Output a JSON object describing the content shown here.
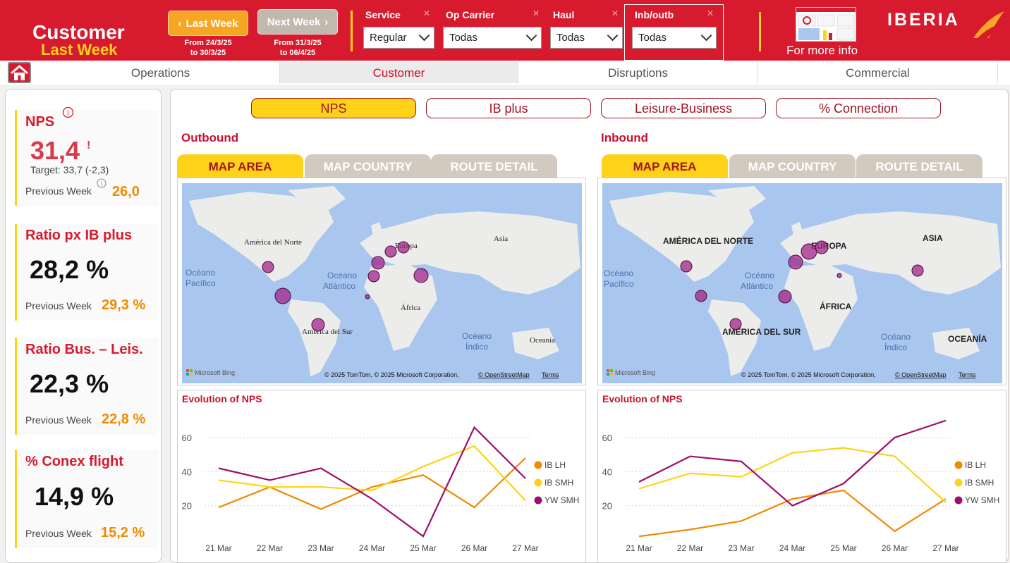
{
  "header": {
    "title_line1": "Customer",
    "title_line2": "Last Week",
    "last_week_btn": "Last Week",
    "last_week_dates": [
      "From 24/3/25",
      "to 30/3/25"
    ],
    "next_week_btn": "Next Week",
    "next_week_dates": [
      "From 31/3/25",
      "to 06/4/25"
    ],
    "filters": [
      {
        "label": "Service",
        "value": "Regular"
      },
      {
        "label": "Op Carrier",
        "value": "Todas"
      },
      {
        "label": "Haul",
        "value": "Todas"
      },
      {
        "label": "Inb/outb",
        "value": "Todas"
      }
    ],
    "more_info": "For more info",
    "brand": "IBERIA",
    "colors": {
      "brand_red": "#d71a2e",
      "accent_yellow": "#ffd21a",
      "orange": "#f08a00"
    }
  },
  "tabs": [
    {
      "label": "Operations",
      "active": false
    },
    {
      "label": "Customer",
      "active": true
    },
    {
      "label": "Disruptions",
      "active": false
    },
    {
      "label": "Commercial",
      "active": false
    }
  ],
  "kpis": {
    "nps": {
      "title": "NPS",
      "value": "31,4",
      "flag": "!",
      "target": "Target: 33,7 (-2,3)",
      "prev_label": "Previous Week",
      "prev_value": "26,0"
    },
    "ibplus": {
      "title": "Ratio px IB plus",
      "value": "28,2 %",
      "prev_label": "Previous Week",
      "prev_value": "29,3 %"
    },
    "busleis": {
      "title": "Ratio Bus. – Leis.",
      "value": "22,3 %",
      "prev_label": "Previous Week",
      "prev_value": "22,8 %"
    },
    "conex": {
      "title": "% Conex flight",
      "value": "14,9 %",
      "prev_label": "Previous Week",
      "prev_value": "15,2 %"
    }
  },
  "metric_buttons": [
    {
      "label": "NPS",
      "active": true
    },
    {
      "label": "IB plus",
      "active": false
    },
    {
      "label": "Leisure-Business",
      "active": false
    },
    {
      "label": "% Connection",
      "active": false
    }
  ],
  "outbound": {
    "title": "Outbound",
    "map_tabs": [
      "MAP AREA",
      "MAP COUNTRY",
      "ROUTE DETAIL"
    ],
    "map_labels": {
      "na": "América del Norte",
      "sa": "América del Sur",
      "eu": "Europa",
      "af": "África",
      "as": "Asia",
      "oc": "Oceanía",
      "pac": [
        "Océano",
        "Pacífico"
      ],
      "atl": [
        "Océano",
        "Atlántico"
      ],
      "ind": [
        "Océano",
        "Índico"
      ]
    },
    "bing": "Microsoft Bing",
    "copyright": "© 2025 TomTom, © 2025 Microsoft Corporation,",
    "osm": "© OpenStreetMap",
    "terms": "Terms"
  },
  "inbound": {
    "title": "Inbound",
    "map_tabs": [
      "MAP AREA",
      "MAP COUNTRY",
      "ROUTE DETAIL"
    ],
    "map_labels": {
      "na": "AMÉRICA DEL NORTE",
      "sa": "AMÉRICA DEL SUR",
      "eu": "EUROPA",
      "af": "ÁFRICA",
      "as": "ASIA",
      "oc": "OCEANÍA",
      "pac": [
        "Océano",
        "Pacífico"
      ],
      "atl": [
        "Océano",
        "Atlántico"
      ],
      "ind": [
        "Océano",
        "Índico"
      ]
    },
    "bing": "Microsoft Bing",
    "copyright": "© 2025 TomTom, © 2025 Microsoft Corporation,",
    "osm": "© OpenStreetMap",
    "terms": "Terms"
  },
  "chart_data": [
    {
      "type": "line",
      "title": "Evolution of NPS",
      "x": [
        "21 Mar",
        "22 Mar",
        "23 Mar",
        "24 Mar",
        "25 Mar",
        "26 Mar",
        "27 Mar"
      ],
      "yticks": [
        20,
        40,
        60
      ],
      "ylim": [
        0,
        72
      ],
      "series": [
        {
          "name": "IB LH",
          "color": "#f08a00",
          "values": [
            19,
            31,
            18,
            31,
            38,
            19,
            48
          ]
        },
        {
          "name": "IB SMH",
          "color": "#ffd21a",
          "values": [
            35,
            31,
            31,
            29,
            43,
            55,
            23
          ]
        },
        {
          "name": "YW SMH",
          "color": "#9e0e6b",
          "values": [
            42,
            35,
            42,
            24,
            2,
            66,
            36
          ]
        }
      ],
      "legend": "right"
    },
    {
      "type": "line",
      "title": "Evolution of NPS",
      "x": [
        "21 Mar",
        "22 Mar",
        "23 Mar",
        "24 Mar",
        "25 Mar",
        "26 Mar",
        "27 Mar"
      ],
      "yticks": [
        20,
        40,
        60
      ],
      "ylim": [
        0,
        72
      ],
      "series": [
        {
          "name": "IB LH",
          "color": "#f08a00",
          "values": [
            2,
            6,
            11,
            24,
            29,
            5,
            24
          ]
        },
        {
          "name": "IB SMH",
          "color": "#ffd21a",
          "values": [
            30,
            39,
            37,
            51,
            54,
            49,
            22
          ]
        },
        {
          "name": "YW SMH",
          "color": "#9e0e6b",
          "values": [
            34,
            49,
            46,
            20,
            33,
            60,
            70
          ]
        }
      ],
      "legend": "right"
    }
  ]
}
